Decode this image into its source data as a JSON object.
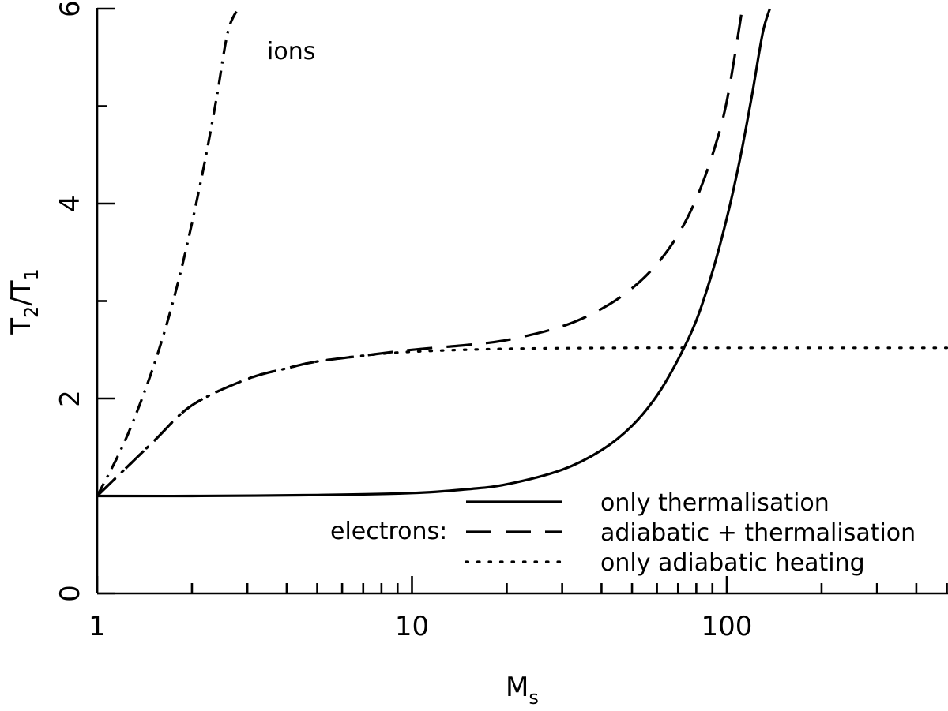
{
  "chart_data": {
    "type": "line",
    "xscale": "log",
    "xlim": [
      1,
      500
    ],
    "ylim": [
      0,
      6
    ],
    "x_ticks": [
      "1",
      "10",
      "100"
    ],
    "y_ticks": [
      "0",
      "2",
      "4",
      "6"
    ],
    "xlabel": {
      "main": "M",
      "sub": "s"
    },
    "ylabel": {
      "main1": "T",
      "sub1": "2",
      "slash": "/",
      "main2": "T",
      "sub2": "1"
    },
    "annotation": "ions",
    "legend_group_label": "electrons:",
    "series": [
      {
        "name": "ions",
        "style": "dashdot",
        "x": [
          1.0,
          1.2,
          1.4,
          1.6,
          1.8,
          2.0,
          2.2,
          2.4,
          2.6,
          2.8
        ],
        "y": [
          1.0,
          1.5,
          2.03,
          2.58,
          3.17,
          3.8,
          4.44,
          5.1,
          5.76,
          6.0
        ]
      },
      {
        "name": "only thermalisation",
        "style": "solid",
        "x": [
          1,
          2,
          5,
          10,
          15,
          20,
          30,
          40,
          50,
          60,
          70,
          80,
          90,
          100,
          110,
          120,
          130,
          137
        ],
        "y": [
          1.0,
          1.0,
          1.01,
          1.03,
          1.07,
          1.12,
          1.27,
          1.47,
          1.72,
          2.03,
          2.4,
          2.8,
          3.3,
          3.85,
          4.45,
          5.1,
          5.75,
          6.0
        ]
      },
      {
        "name": "adiabatic + thermalisation",
        "style": "dashed",
        "x": [
          1,
          1.5,
          2,
          3,
          4,
          5,
          7,
          10,
          15,
          20,
          30,
          40,
          50,
          60,
          70,
          80,
          90,
          100,
          112
        ],
        "y": [
          1.0,
          1.55,
          1.93,
          2.2,
          2.31,
          2.38,
          2.44,
          2.5,
          2.55,
          2.6,
          2.74,
          2.92,
          3.13,
          3.38,
          3.68,
          4.05,
          4.5,
          5.05,
          6.0
        ]
      },
      {
        "name": "only adiabatic heating",
        "style": "dotted",
        "x": [
          1,
          1.5,
          2,
          3,
          4,
          5,
          7,
          10,
          20,
          50,
          100,
          500
        ],
        "y": [
          1.0,
          1.55,
          1.93,
          2.2,
          2.31,
          2.38,
          2.44,
          2.48,
          2.51,
          2.52,
          2.52,
          2.52
        ]
      }
    ]
  }
}
